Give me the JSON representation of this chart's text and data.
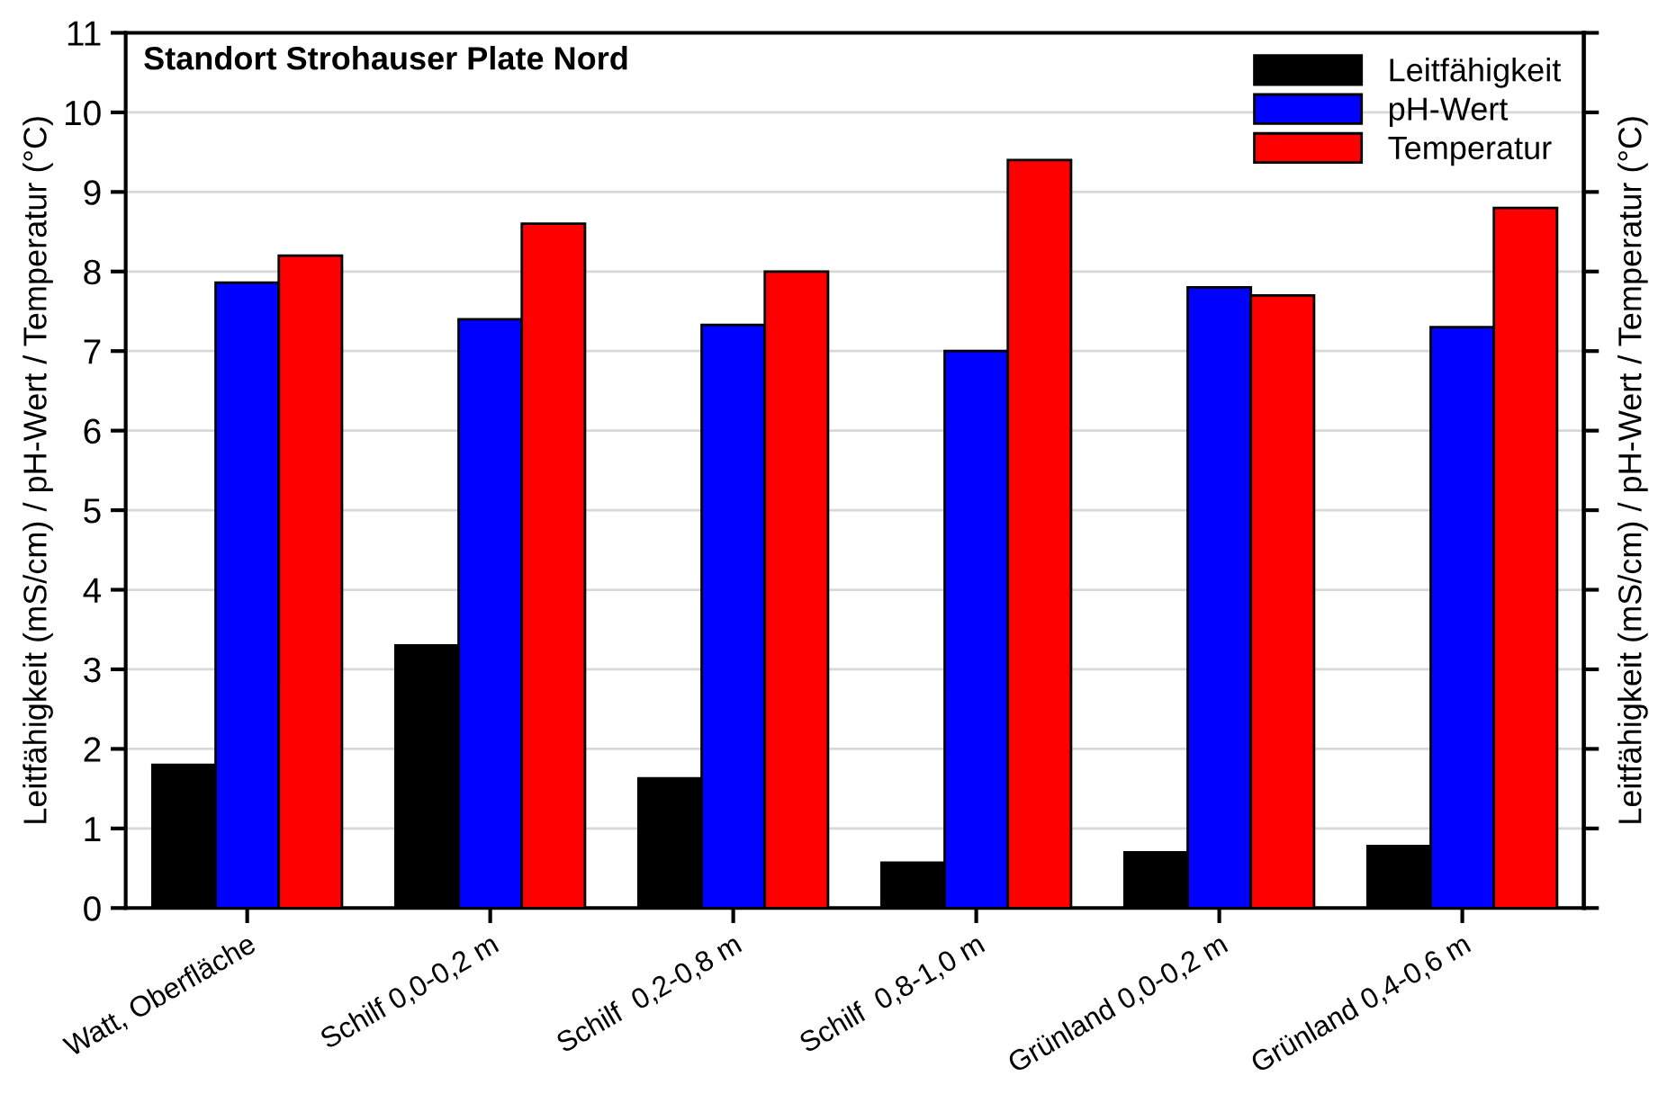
{
  "chart_data": {
    "type": "bar",
    "title": "Standort Strohauser Plate Nord",
    "categories": [
      "Watt, Oberfläche",
      "Schilf 0,0-0,2 m",
      "Schilf  0,2-0,8 m",
      "Schilf  0,8-1,0 m",
      "Grünland 0,0-0,2 m",
      "Grünland 0,4-0,6 m"
    ],
    "series": [
      {
        "name": "Leitfähigkeit",
        "color": "#000000",
        "values": [
          1.8,
          3.3,
          1.63,
          0.57,
          0.7,
          0.78
        ]
      },
      {
        "name": "pH-Wert",
        "color": "#0000ff",
        "values": [
          7.86,
          7.4,
          7.33,
          7.0,
          7.8,
          7.3
        ]
      },
      {
        "name": "Temperatur",
        "color": "#ff0000",
        "values": [
          8.2,
          8.6,
          8.0,
          9.4,
          7.7,
          8.8
        ]
      }
    ],
    "ylabel": "Leitfähigkeit (mS/cm) / pH-Wert / Temperatur (°C)",
    "y2label": "Leitfähigkeit (mS/cm) / pH-Wert / Temperatur (°C)",
    "ylim": [
      0,
      11
    ],
    "yticks": [
      0,
      1,
      2,
      3,
      4,
      5,
      6,
      7,
      8,
      9,
      10,
      11
    ],
    "grid": "y",
    "legend": "top right"
  }
}
